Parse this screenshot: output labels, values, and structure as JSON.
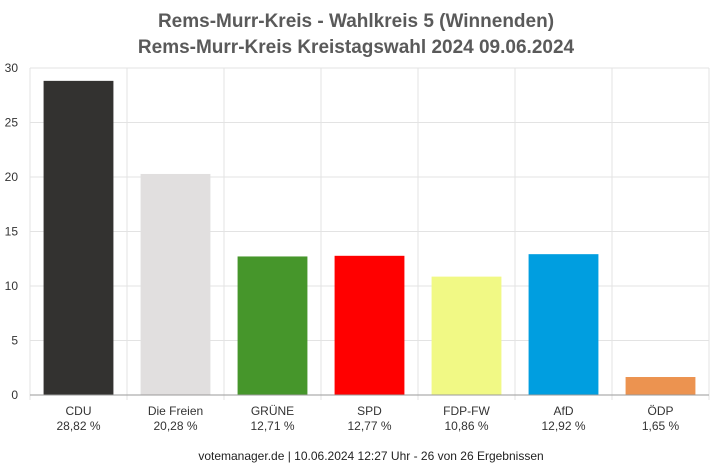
{
  "chart_data": {
    "type": "bar",
    "title": "Rems-Murr-Kreis - Wahlkreis 5 (Winnenden)",
    "subtitle": "Rems-Murr-Kreis Kreistagswahl 2024 09.06.2024",
    "categories": [
      "CDU",
      "Die Freien",
      "GRÜNE",
      "SPD",
      "FDP-FW",
      "AfD",
      "ÖDP"
    ],
    "values": [
      28.82,
      20.28,
      12.71,
      12.77,
      10.86,
      12.92,
      1.65
    ],
    "value_labels": [
      "28,82 %",
      "20,28 %",
      "12,71 %",
      "12,77 %",
      "10,86 %",
      "12,92 %",
      "1,65 %"
    ],
    "colors": [
      "#333230",
      "#e1dfdf",
      "#46962b",
      "#ff0000",
      "#f1f985",
      "#009ee0",
      "#ec9350"
    ],
    "ylim": [
      0,
      30
    ],
    "yticks": [
      "0",
      "5",
      "10",
      "15",
      "20",
      "25",
      "30"
    ],
    "grid": true,
    "footer": "votemanager.de | 10.06.2024 12:27 Uhr - 26 von 26 Ergebnissen"
  }
}
